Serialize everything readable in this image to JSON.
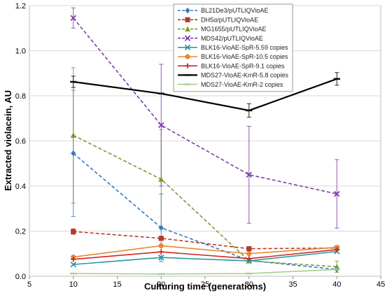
{
  "chart_data": {
    "type": "line",
    "title": "",
    "xlabel": "Culturing time (generations)",
    "ylabel": "Extracted violacein, AU",
    "xlim": [
      5,
      45
    ],
    "ylim": [
      0,
      1.2
    ],
    "xticks": [
      5,
      10,
      15,
      20,
      25,
      30,
      35,
      40,
      45
    ],
    "yticks": [
      0,
      0.2,
      0.4,
      0.6,
      0.8,
      1.0,
      1.2
    ],
    "xtick_labels": [
      "5",
      "10",
      "15",
      "20",
      "25",
      "30",
      "35",
      "40",
      "45"
    ],
    "ytick_labels": [
      "0.0",
      "0.2",
      "0.4",
      "0.6",
      "0.8",
      "1.0",
      "1.2"
    ],
    "grid": "horizontal",
    "legend_position": "top",
    "x": [
      10,
      20,
      30,
      40
    ],
    "series": [
      {
        "name": "BL21De3/pUTLIQVioAE",
        "values": [
          0.545,
          0.215,
          0.07,
          0.03
        ],
        "errors": [
          0.28,
          0.15,
          0.0,
          0.0
        ],
        "color": "#3a78c2",
        "dashed": true,
        "marker": "diamond"
      },
      {
        "name": "DH5α/pUTLIQVioAE",
        "values": [
          0.198,
          0.168,
          0.122,
          0.125
        ],
        "errors": [
          0.012,
          0.0,
          0.0,
          0.0
        ],
        "color": "#b23a2a",
        "dashed": true,
        "marker": "square"
      },
      {
        "name": "MG1655/pUTLIQVioAE",
        "values": [
          0.625,
          0.43,
          0.068,
          0.042
        ],
        "errors": [
          0.3,
          0.22,
          0.0,
          0.025
        ],
        "color": "#7e9a32",
        "dashed": true,
        "marker": "triangle"
      },
      {
        "name": "MDS42/pUTLIQVioAE",
        "values": [
          1.145,
          0.67,
          0.45,
          0.365
        ],
        "errors": [
          0.045,
          0.27,
          0.215,
          0.152
        ],
        "color": "#7e3fa8",
        "dashed": true,
        "marker": "x"
      },
      {
        "name": "BLK16-VioAE-SpR-5.59 copies",
        "values": [
          0.052,
          0.083,
          0.068,
          0.11
        ],
        "errors": [
          0.0,
          0.0,
          0.0,
          0.0
        ],
        "color": "#2e9aa0",
        "dashed": false,
        "marker": "x"
      },
      {
        "name": "BLK16-VioAE-SpR-10.5 copies",
        "values": [
          0.085,
          0.135,
          0.1,
          0.128
        ],
        "errors": [
          0.0,
          0.0,
          0.0,
          0.0
        ],
        "color": "#e8892e",
        "dashed": false,
        "marker": "circle"
      },
      {
        "name": "BLK16-VioAE-SpR-9.1 copies",
        "values": [
          0.075,
          0.108,
          0.078,
          0.118
        ],
        "errors": [
          0.0,
          0.0,
          0.0,
          0.0
        ],
        "color": "#d42424",
        "dashed": false,
        "marker": "plus"
      },
      {
        "name": "MDS27-VioAE-KmR-5.8 copies",
        "values": [
          0.862,
          0.81,
          0.735,
          0.875
        ],
        "errors": [
          0.025,
          0.0,
          0.03,
          0.028
        ],
        "color": "#000000",
        "dashed": false,
        "marker": "dash"
      },
      {
        "name": "MDS27-VioAE-KmR-2 copies",
        "values": [
          0.012,
          0.01,
          0.012,
          0.03
        ],
        "errors": [
          0.0,
          0.0,
          0.0,
          0.0
        ],
        "color": "#a6cf8a",
        "dashed": false,
        "marker": "dash"
      }
    ]
  }
}
